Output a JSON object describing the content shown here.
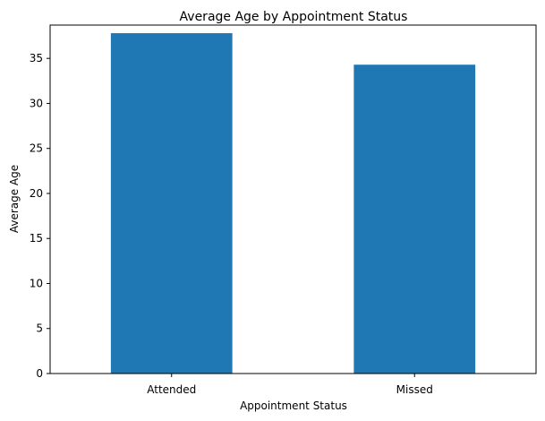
{
  "chart_data": {
    "type": "bar",
    "title": "Average Age by Appointment Status",
    "xlabel": "Appointment Status",
    "ylabel": "Average Age",
    "categories": [
      "Attended",
      "Missed"
    ],
    "values": [
      37.8,
      34.3
    ],
    "ylim": [
      0,
      38.7
    ],
    "yticks": [
      0,
      5,
      10,
      15,
      20,
      25,
      30,
      35
    ],
    "grid": false,
    "bar_color": "#1f77b4"
  }
}
